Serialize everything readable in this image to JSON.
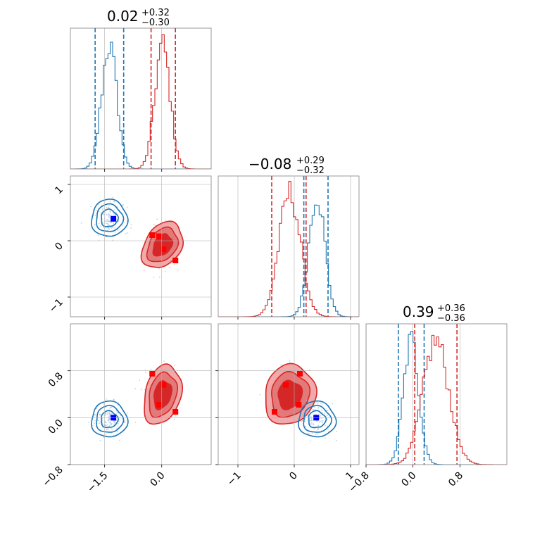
{
  "colors": {
    "series_a": "#1f77b4",
    "series_b": "#d62728",
    "marker_a": "#0000ff",
    "marker_b": "#ff0000",
    "grid": "#b0b0b0",
    "frame": "#808080"
  },
  "chart_data": {
    "type": "corner-plot",
    "parameters": 3,
    "titles": [
      {
        "median": "0.02",
        "plus": "+0.32",
        "minus": "−0.30"
      },
      {
        "median": "−0.08",
        "plus": "+0.29",
        "minus": "−0.32"
      },
      {
        "median": "0.39",
        "plus": "+0.36",
        "minus": "−0.36"
      }
    ],
    "axes": {
      "p1": {
        "range": [
          -2.4,
          1.3
        ],
        "ticks": [
          -1.5,
          0.0
        ],
        "tick_labels": [
          "−1.5",
          "0.0"
        ]
      },
      "p2": {
        "range": [
          -1.35,
          1.15
        ],
        "ticks": [
          -1,
          0,
          1
        ],
        "tick_labels": [
          "−1",
          "0",
          "1"
        ]
      },
      "p3": {
        "range": [
          -0.8,
          1.6
        ],
        "ticks": [
          -0.8,
          0.0,
          0.8
        ],
        "tick_labels": [
          "−0.8",
          "0.0",
          "0.8"
        ]
      }
    },
    "quantiles": {
      "series_a": {
        "p1": [
          -1.75,
          -1.0
        ],
        "p2": [
          0.17,
          0.6
        ],
        "p3": [
          -0.25,
          0.19
        ]
      },
      "series_b": {
        "p1": [
          -0.28,
          0.36
        ],
        "p2": [
          -0.4,
          0.21
        ],
        "p3": [
          0.03,
          0.75
        ]
      }
    },
    "distributions": {
      "series_a": {
        "p1": {
          "mean": -1.38,
          "sd": 0.2
        },
        "p2": {
          "mean": 0.4,
          "sd": 0.14
        },
        "p3": {
          "mean": -0.03,
          "sd": 0.13
        }
      },
      "series_b": {
        "p1": {
          "mean": 0.02,
          "sd": 0.2
        },
        "p2": {
          "mean": -0.08,
          "sd": 0.19
        },
        "p3": {
          "mean": 0.39,
          "sd": 0.22
        }
      }
    },
    "markers": {
      "series_a": [
        {
          "p1": -1.27,
          "p2": 0.39,
          "p3": 0.0
        }
      ],
      "series_b": [
        {
          "p1": -0.25,
          "p2": 0.1,
          "p3": 0.75
        },
        {
          "p1": -0.07,
          "p2": 0.08,
          "p3": 0.22
        },
        {
          "p1": 0.05,
          "p2": -0.15,
          "p3": 0.56
        },
        {
          "p1": 0.36,
          "p2": -0.35,
          "p3": 0.1
        }
      ]
    }
  }
}
